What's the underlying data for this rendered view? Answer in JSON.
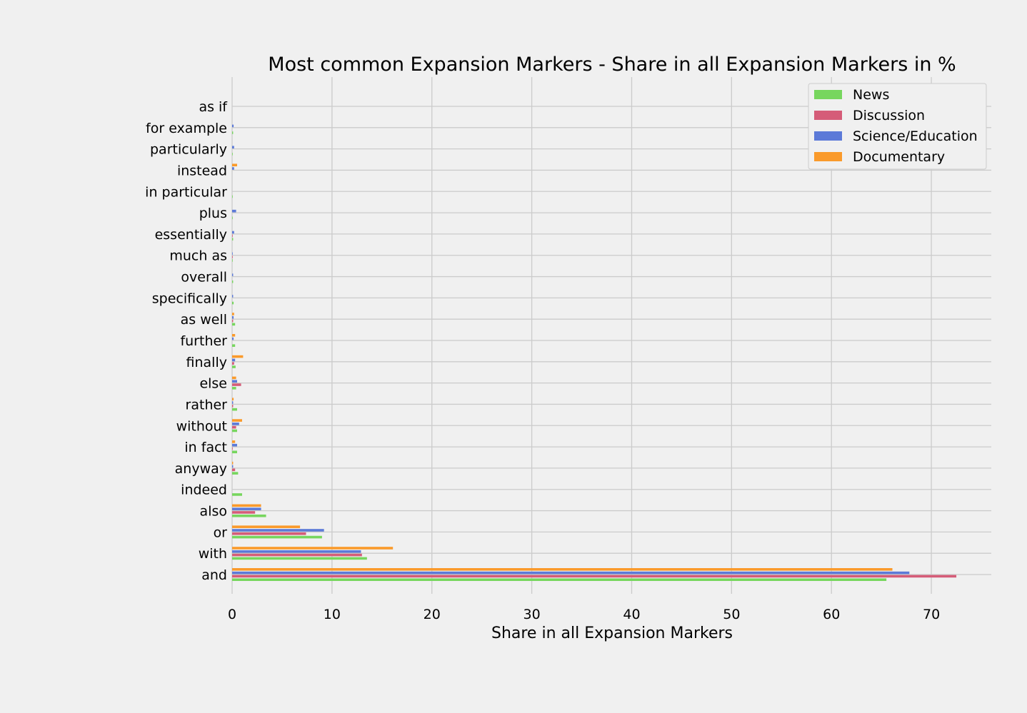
{
  "chart_data": {
    "type": "bar",
    "orientation": "horizontal",
    "title": "Most common Expansion Markers - Share in all Expansion Markers in %",
    "xlabel": "Share in all Expansion Markers",
    "ylabel": "",
    "xlim": [
      0,
      76
    ],
    "xticks": [
      0,
      10,
      20,
      30,
      40,
      50,
      60,
      70
    ],
    "grid": true,
    "legend_position": "top-right",
    "categories": [
      "and",
      "with",
      "or",
      "also",
      "indeed",
      "anyway",
      "in fact",
      "without",
      "rather",
      "else",
      "finally",
      "further",
      "as well",
      "specifically",
      "overall",
      "much as",
      "essentially",
      "plus",
      "in particular",
      "instead",
      "particularly",
      "for example",
      "as if"
    ],
    "series": [
      {
        "name": "News",
        "color": "#77d65e",
        "values": [
          65.5,
          13.5,
          9.0,
          3.4,
          1.0,
          0.6,
          0.5,
          0.5,
          0.5,
          0.4,
          0.35,
          0.3,
          0.3,
          0.15,
          0.1,
          0.05,
          0.1,
          0.05,
          0.05,
          0.0,
          0.05,
          0.1,
          0.0
        ]
      },
      {
        "name": "Discussion",
        "color": "#d55c78",
        "values": [
          72.5,
          13.0,
          7.4,
          2.3,
          0.0,
          0.3,
          0.05,
          0.4,
          0.1,
          0.9,
          0.2,
          0.0,
          0.1,
          0.0,
          0.0,
          0.05,
          0.05,
          0.0,
          0.0,
          0.0,
          0.0,
          0.0,
          0.0
        ]
      },
      {
        "name": "Science/Education",
        "color": "#5c7ad8",
        "values": [
          67.8,
          12.9,
          9.2,
          2.9,
          0.0,
          0.1,
          0.5,
          0.7,
          0.1,
          0.5,
          0.3,
          0.15,
          0.15,
          0.1,
          0.1,
          0.05,
          0.2,
          0.4,
          0.0,
          0.2,
          0.2,
          0.15,
          0.0
        ]
      },
      {
        "name": "Documentary",
        "color": "#fa9a2b",
        "values": [
          66.1,
          16.1,
          6.8,
          2.9,
          0.0,
          0.1,
          0.3,
          1.0,
          0.15,
          0.4,
          1.1,
          0.3,
          0.2,
          0.0,
          0.0,
          0.0,
          0.0,
          0.0,
          0.0,
          0.5,
          0.0,
          0.0,
          0.0
        ]
      }
    ]
  }
}
